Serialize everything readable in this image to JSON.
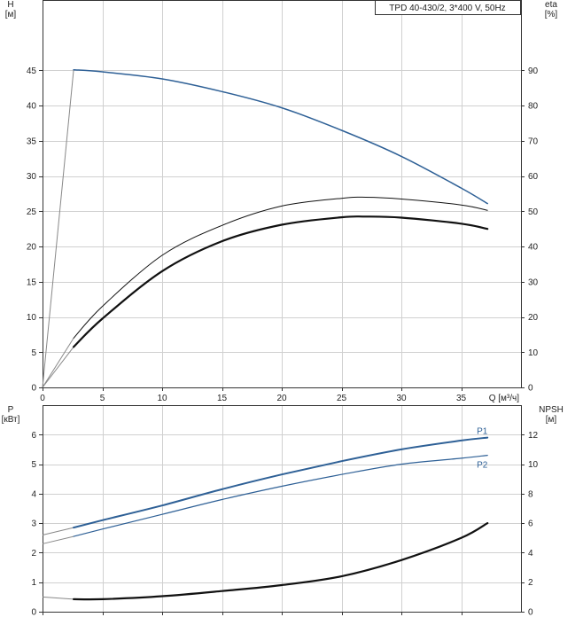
{
  "colors": {
    "blue": "#2e6096",
    "black": "#111111",
    "grid": "#d0d0d0",
    "ext_line": "#888888"
  },
  "chart_data": [
    {
      "type": "line",
      "name": "head-efficiency",
      "title": "TPD 40-430/2, 3*400 V, 50Hz",
      "x_label": "Q [м³/ч]",
      "y_label": [
        "H",
        "[м]"
      ],
      "y2_label": [
        "eta",
        "[%]"
      ],
      "xlim": [
        0,
        40
      ],
      "ylim": [
        0,
        55
      ],
      "y2lim": [
        0,
        110
      ],
      "x_ticks": [
        0,
        5,
        10,
        15,
        20,
        25,
        30,
        35
      ],
      "y_ticks": [
        0,
        5,
        10,
        15,
        20,
        25,
        30,
        35,
        40,
        45
      ],
      "y2_ticks": [
        0,
        10,
        20,
        30,
        40,
        50,
        60,
        70,
        80,
        90
      ],
      "series": [
        {
          "key": "H",
          "axis": "left",
          "color": "#2e6096",
          "width": 1.5,
          "ext_start": 0,
          "x": [
            2.6,
            5,
            10,
            15,
            20,
            25,
            30,
            35,
            37.2
          ],
          "y": [
            45.1,
            44.8,
            43.8,
            42.0,
            39.7,
            36.5,
            32.8,
            28.3,
            26.1
          ]
        },
        {
          "key": "eta",
          "axis": "right",
          "color": "#111111",
          "width": 1.0,
          "ext_start": 0,
          "x": [
            2.6,
            5,
            10,
            15,
            20,
            25,
            27,
            30,
            35,
            37.2
          ],
          "y": [
            14.0,
            23.0,
            37.5,
            46.0,
            51.5,
            53.7,
            54.0,
            53.5,
            51.8,
            50.3
          ]
        },
        {
          "key": "eta_u",
          "axis": "right",
          "color": "#111111",
          "width": 2.2,
          "ext_start": 0,
          "x": [
            2.6,
            5,
            10,
            15,
            20,
            25,
            27,
            30,
            35,
            37.2
          ],
          "y": [
            11.5,
            19.5,
            33.0,
            41.5,
            46.2,
            48.3,
            48.5,
            48.2,
            46.5,
            45.0
          ]
        }
      ]
    },
    {
      "type": "line",
      "name": "power-npsh",
      "y_label": [
        "P",
        "[кВт]"
      ],
      "y2_label": [
        "NPSH",
        "[м]"
      ],
      "xlim": [
        0,
        40
      ],
      "ylim": [
        0,
        7
      ],
      "y2lim": [
        0,
        14
      ],
      "x_ticks": [
        0,
        5,
        10,
        15,
        20,
        25,
        30,
        35
      ],
      "y_ticks": [
        0,
        1,
        2,
        3,
        4,
        5,
        6
      ],
      "y2_ticks": [
        0,
        2,
        4,
        6,
        8,
        10,
        12
      ],
      "series": [
        {
          "key": "P1",
          "name": "P1",
          "axis": "left",
          "color": "#2e6096",
          "width": 2.0,
          "ext_start": 2.6,
          "x": [
            2.6,
            5,
            10,
            15,
            20,
            25,
            30,
            35,
            37.2
          ],
          "y": [
            2.85,
            3.1,
            3.6,
            4.15,
            4.65,
            5.1,
            5.5,
            5.8,
            5.9
          ]
        },
        {
          "key": "P2",
          "name": "P2",
          "axis": "left",
          "color": "#2e6096",
          "width": 1.2,
          "ext_start": 2.3,
          "x": [
            2.6,
            5,
            10,
            15,
            20,
            25,
            30,
            35,
            37.2
          ],
          "y": [
            2.55,
            2.8,
            3.3,
            3.8,
            4.25,
            4.65,
            5.0,
            5.2,
            5.3
          ]
        },
        {
          "key": "NPSH",
          "axis": "right",
          "color": "#111111",
          "width": 2.2,
          "ext_start": 1.0,
          "x": [
            2.6,
            5,
            10,
            15,
            20,
            25,
            30,
            35,
            37.2
          ],
          "y": [
            0.85,
            0.85,
            1.05,
            1.4,
            1.8,
            2.4,
            3.5,
            5.0,
            6.0
          ]
        }
      ]
    }
  ]
}
